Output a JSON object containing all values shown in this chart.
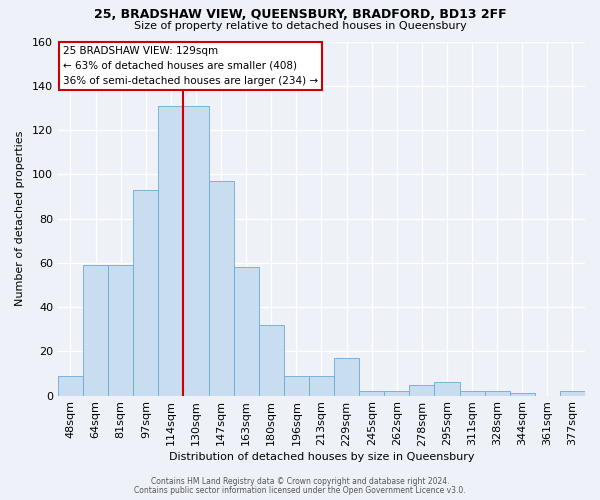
{
  "title1": "25, BRADSHAW VIEW, QUEENSBURY, BRADFORD, BD13 2FF",
  "title2": "Size of property relative to detached houses in Queensbury",
  "xlabel": "Distribution of detached houses by size in Queensbury",
  "ylabel": "Number of detached properties",
  "bar_color": "#c9ddf0",
  "bar_edge_color": "#6aaad4",
  "background_color": "#eef2f8",
  "grid_color": "#ffffff",
  "annotation_box_color": "#ffffff",
  "annotation_border_color": "#cc0000",
  "vline_color": "#cc0000",
  "vline_x_index": 4,
  "annotation_title": "25 BRADSHAW VIEW: 129sqm",
  "annotation_line1": "← 63% of detached houses are smaller (408)",
  "annotation_line2": "36% of semi-detached houses are larger (234) →",
  "categories": [
    "48sqm",
    "64sqm",
    "81sqm",
    "97sqm",
    "114sqm",
    "130sqm",
    "147sqm",
    "163sqm",
    "180sqm",
    "196sqm",
    "213sqm",
    "229sqm",
    "245sqm",
    "262sqm",
    "278sqm",
    "295sqm",
    "311sqm",
    "328sqm",
    "344sqm",
    "361sqm",
    "377sqm"
  ],
  "values": [
    9,
    59,
    59,
    93,
    131,
    131,
    97,
    58,
    32,
    9,
    9,
    17,
    2,
    2,
    5,
    6,
    2,
    2,
    1,
    0,
    2
  ],
  "ylim": [
    0,
    160
  ],
  "yticks": [
    0,
    20,
    40,
    60,
    80,
    100,
    120,
    140,
    160
  ],
  "footer1": "Contains HM Land Registry data © Crown copyright and database right 2024.",
  "footer2": "Contains public sector information licensed under the Open Government Licence v3.0."
}
